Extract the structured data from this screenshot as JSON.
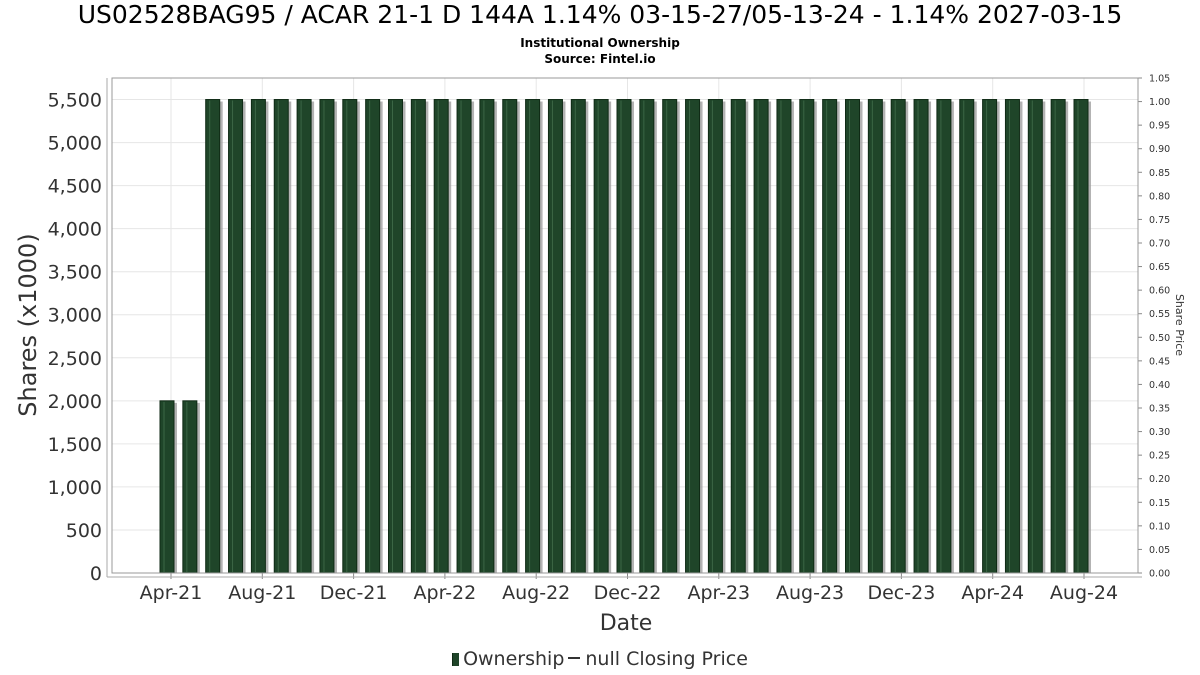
{
  "chart_data": {
    "type": "bar",
    "title": "US02528BAG95 / ACAR 21-1 D 144A 1.14% 03-15-27/05-13-24 - 1.14% 2027-03-15",
    "subtitle_lines": [
      "Institutional Ownership",
      "Source: Fintel.io"
    ],
    "xlabel": "Date",
    "ylabel": "Shares (x1000)",
    "y2label": "Share Price",
    "ylim": [
      0,
      5750
    ],
    "y2lim": [
      0,
      1.05
    ],
    "yticks": [
      "0",
      "500",
      "1,000",
      "1,500",
      "2,000",
      "2,500",
      "3,000",
      "3,500",
      "4,000",
      "4,500",
      "5,000",
      "5,500"
    ],
    "y2ticks": [
      "0.00",
      "0.05",
      "0.10",
      "0.15",
      "0.20",
      "0.25",
      "0.30",
      "0.35",
      "0.40",
      "0.45",
      "0.50",
      "0.55",
      "0.60",
      "0.65",
      "0.70",
      "0.75",
      "0.80",
      "0.85",
      "0.90",
      "0.95",
      "1.00",
      "1.05"
    ],
    "xticks": [
      "Apr-21",
      "Aug-21",
      "Dec-21",
      "Apr-22",
      "Aug-22",
      "Dec-22",
      "Apr-23",
      "Aug-23",
      "Dec-23",
      "Apr-24",
      "Aug-24"
    ],
    "series": [
      {
        "name": "Ownership",
        "values": [
          2000,
          2000,
          5500,
          5500,
          5500,
          5500,
          5500,
          5500,
          5500,
          5500,
          5500,
          5500,
          5500,
          5500,
          5500,
          5500,
          5500,
          5500,
          5500,
          5500,
          5500,
          5500,
          5500,
          5500,
          5500,
          5500,
          5500,
          5500,
          5500,
          5500,
          5500,
          5500,
          5500,
          5500,
          5500,
          5500,
          5500,
          5500,
          5500,
          5500,
          5500
        ]
      }
    ],
    "grid": true,
    "legend_position": "bottom-center",
    "colors": {
      "bar": "#1f4529",
      "bar_edge": "#0f2a15",
      "shadow": "#9a9a9a",
      "grid": "#e6e6e6"
    }
  },
  "legend": {
    "ownership_label": "Ownership",
    "price_label": "null Closing Price"
  }
}
